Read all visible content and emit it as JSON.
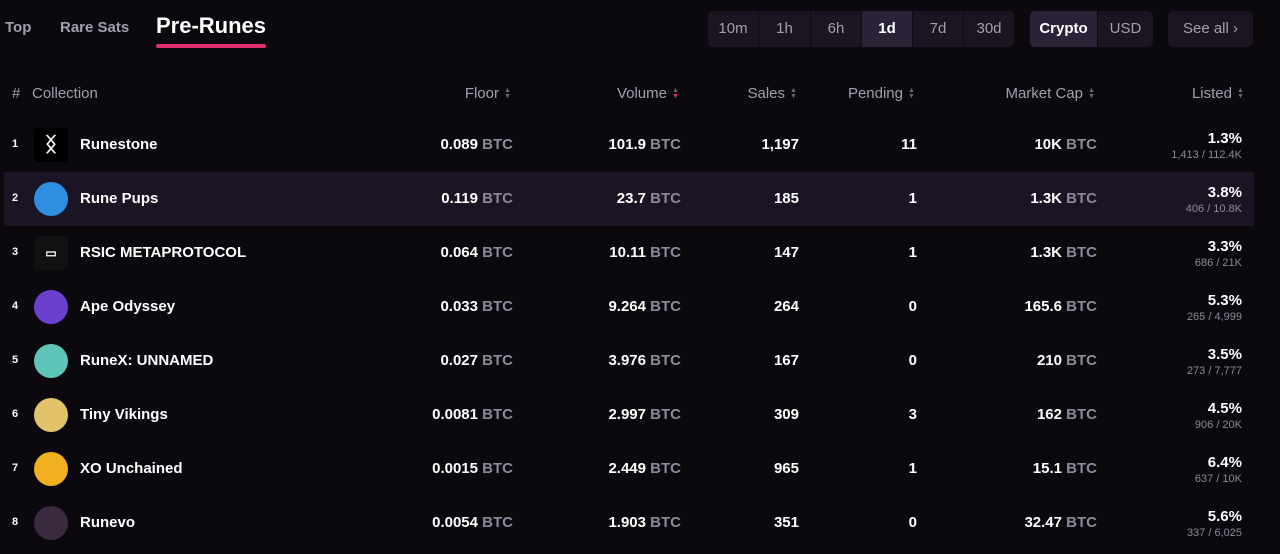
{
  "tabs": [
    {
      "label": "Top"
    },
    {
      "label": "Rare Sats"
    },
    {
      "label": "Pre-Runes",
      "active": true
    }
  ],
  "time_ranges": [
    {
      "label": "10m"
    },
    {
      "label": "1h"
    },
    {
      "label": "6h"
    },
    {
      "label": "1d",
      "active": true
    },
    {
      "label": "7d"
    },
    {
      "label": "30d"
    }
  ],
  "currency": [
    {
      "label": "Crypto",
      "active": true
    },
    {
      "label": "USD"
    }
  ],
  "see_all": "See all",
  "see_all_icon": "chevron-right-icon",
  "accent": "#e0316e",
  "columns": {
    "rank": "#",
    "collection": "Collection",
    "floor": "Floor",
    "volume": "Volume",
    "sales": "Sales",
    "pending": "Pending",
    "market_cap": "Market Cap",
    "listed": "Listed"
  },
  "unit": "BTC",
  "rows": [
    {
      "rank": "1",
      "name": "Runestone",
      "floor": "0.089",
      "volume": "101.9",
      "sales": "1,197",
      "pending": "11",
      "market_cap": "10K",
      "listed_pct": "1.3%",
      "listed_detail": "1,413 / 112.4K",
      "avatar_color": "#000000"
    },
    {
      "rank": "2",
      "name": "Rune Pups",
      "floor": "0.119",
      "volume": "23.7",
      "sales": "185",
      "pending": "1",
      "market_cap": "1.3K",
      "listed_pct": "3.8%",
      "listed_detail": "406 / 10.8K",
      "avatar_color": "#2f8ee0"
    },
    {
      "rank": "3",
      "name": "RSIC METAPROTOCOL",
      "floor": "0.064",
      "volume": "10.11",
      "sales": "147",
      "pending": "1",
      "market_cap": "1.3K",
      "listed_pct": "3.3%",
      "listed_detail": "686 / 21K",
      "avatar_color": "#111111"
    },
    {
      "rank": "4",
      "name": "Ape Odyssey",
      "floor": "0.033",
      "volume": "9.264",
      "sales": "264",
      "pending": "0",
      "market_cap": "165.6",
      "listed_pct": "5.3%",
      "listed_detail": "265 / 4,999",
      "avatar_color": "#6a3fd0"
    },
    {
      "rank": "5",
      "name": "RuneX: UNNAMED",
      "floor": "0.027",
      "volume": "3.976",
      "sales": "167",
      "pending": "0",
      "market_cap": "210",
      "listed_pct": "3.5%",
      "listed_detail": "273 / 7,777",
      "avatar_color": "#5fc4b8"
    },
    {
      "rank": "6",
      "name": "Tiny Vikings",
      "floor": "0.0081",
      "volume": "2.997",
      "sales": "309",
      "pending": "3",
      "market_cap": "162",
      "listed_pct": "4.5%",
      "listed_detail": "906 / 20K",
      "avatar_color": "#e2c36a"
    },
    {
      "rank": "7",
      "name": "XO Unchained",
      "floor": "0.0015",
      "volume": "2.449",
      "sales": "965",
      "pending": "1",
      "market_cap": "15.1",
      "listed_pct": "6.4%",
      "listed_detail": "637 / 10K",
      "avatar_color": "#f0b020"
    },
    {
      "rank": "8",
      "name": "Runevo",
      "floor": "0.0054",
      "volume": "1.903",
      "sales": "351",
      "pending": "0",
      "market_cap": "32.47",
      "listed_pct": "5.6%",
      "listed_detail": "337 / 6,025",
      "avatar_color": "#3a2a40"
    }
  ]
}
